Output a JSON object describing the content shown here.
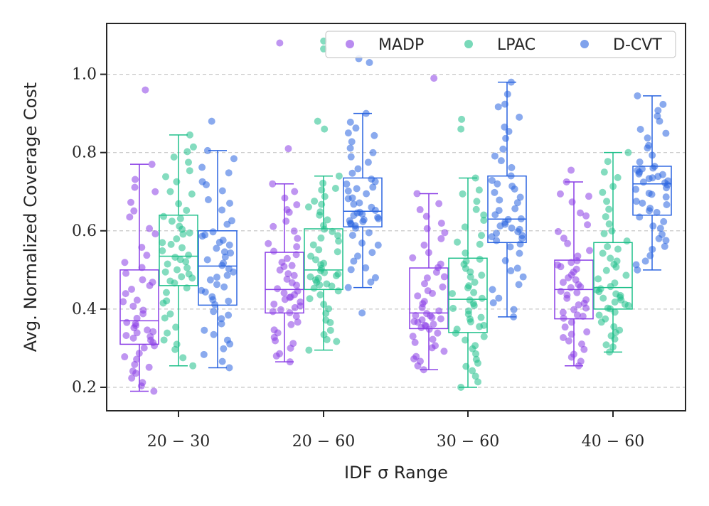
{
  "chart_data": {
    "type": "box",
    "xlabel": "IDF σ Range",
    "ylabel": "Avg. Normalized Coverage Cost",
    "categories": [
      "20 − 30",
      "20 − 60",
      "30 − 60",
      "40 − 60"
    ],
    "ylim": [
      0.14,
      1.13
    ],
    "yticks": [
      0.2,
      0.4,
      0.6,
      0.8,
      1.0
    ],
    "ytick_labels": [
      "0.2",
      "0.4",
      "0.6",
      "0.8",
      "1.0"
    ],
    "grid": "horizontal dashed",
    "legend_position": "top-right",
    "series": [
      {
        "name": "MADP",
        "color": "#8a3ee6",
        "boxes": [
          {
            "whisker_low": 0.19,
            "q1": 0.31,
            "median": 0.37,
            "q3": 0.5,
            "whisker_high": 0.77,
            "outliers": [
              0.96
            ]
          },
          {
            "whisker_low": 0.265,
            "q1": 0.39,
            "median": 0.45,
            "q3": 0.545,
            "whisker_high": 0.72,
            "outliers": [
              0.81,
              1.08
            ]
          },
          {
            "whisker_low": 0.245,
            "q1": 0.35,
            "median": 0.39,
            "q3": 0.505,
            "whisker_high": 0.695,
            "outliers": [
              0.99
            ]
          },
          {
            "whisker_low": 0.255,
            "q1": 0.375,
            "median": 0.45,
            "q3": 0.525,
            "whisker_high": 0.725,
            "outliers": [
              0.755
            ]
          }
        ]
      },
      {
        "name": "LPAC",
        "color": "#1fc08a",
        "boxes": [
          {
            "whisker_low": 0.255,
            "q1": 0.46,
            "median": 0.535,
            "q3": 0.64,
            "whisker_high": 0.845,
            "outliers": []
          },
          {
            "whisker_low": 0.295,
            "q1": 0.45,
            "median": 0.5,
            "q3": 0.605,
            "whisker_high": 0.74,
            "outliers": [
              0.86,
              0.88,
              1.065,
              1.085
            ]
          },
          {
            "whisker_low": 0.2,
            "q1": 0.34,
            "median": 0.425,
            "q3": 0.53,
            "whisker_high": 0.735,
            "outliers": [
              0.86,
              0.885
            ]
          },
          {
            "whisker_low": 0.29,
            "q1": 0.4,
            "median": 0.455,
            "q3": 0.57,
            "whisker_high": 0.8,
            "outliers": []
          }
        ]
      },
      {
        "name": "D-CVT",
        "color": "#2a64e0",
        "boxes": [
          {
            "whisker_low": 0.25,
            "q1": 0.41,
            "median": 0.51,
            "q3": 0.6,
            "whisker_high": 0.805,
            "outliers": [
              0.88
            ]
          },
          {
            "whisker_low": 0.455,
            "q1": 0.61,
            "median": 0.65,
            "q3": 0.735,
            "whisker_high": 0.9,
            "outliers": [
              0.39,
              1.03,
              1.04
            ]
          },
          {
            "whisker_low": 0.38,
            "q1": 0.57,
            "median": 0.63,
            "q3": 0.74,
            "whisker_high": 0.98,
            "outliers": []
          },
          {
            "whisker_low": 0.5,
            "q1": 0.64,
            "median": 0.72,
            "q3": 0.765,
            "whisker_high": 0.945,
            "outliers": []
          }
        ]
      }
    ]
  }
}
